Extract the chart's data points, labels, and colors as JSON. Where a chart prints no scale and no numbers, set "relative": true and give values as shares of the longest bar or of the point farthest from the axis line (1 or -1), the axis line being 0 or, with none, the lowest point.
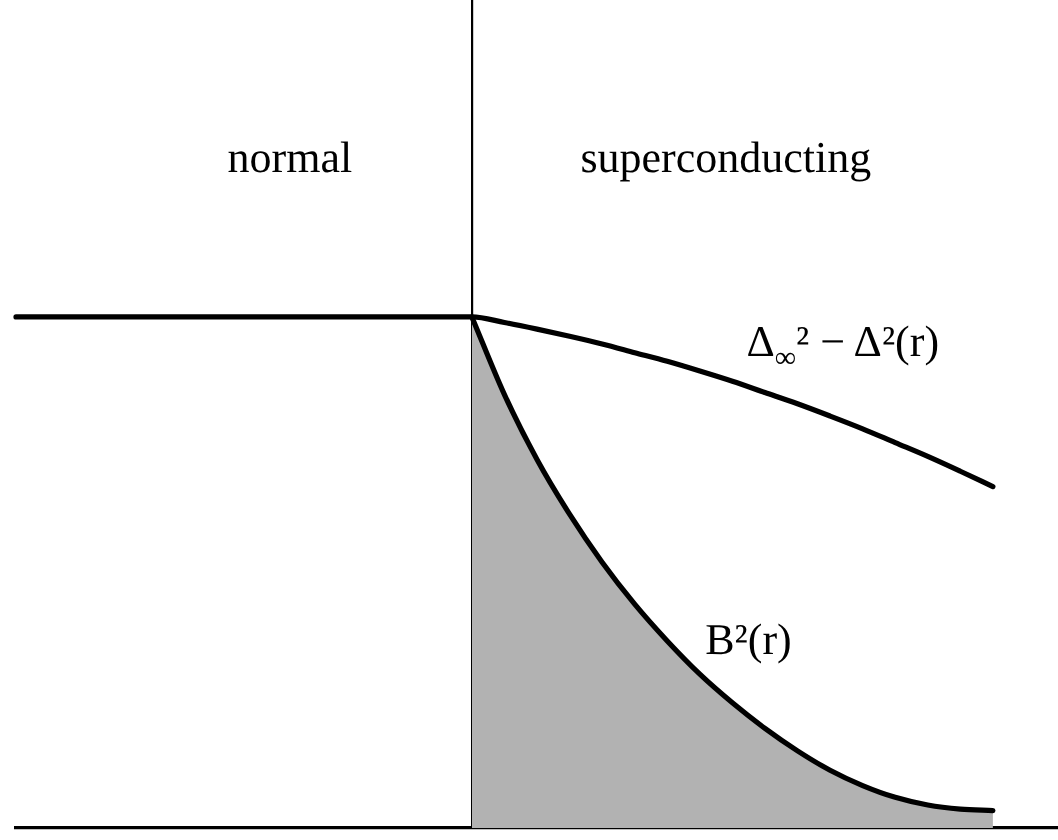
{
  "chart_data": {
    "type": "line",
    "relative": true,
    "categories": [
      null,
      null,
      null,
      null,
      null,
      null,
      null,
      null,
      null,
      null,
      null,
      null,
      null,
      null,
      null,
      null,
      null,
      null,
      null,
      null,
      null,
      null,
      null,
      null,
      null,
      null,
      null,
      null,
      null,
      null,
      null,
      null,
      null
    ],
    "series": [
      {
        "name": "Δ$_{∞}$² − Δ²(r)",
        "color": "#000000",
        "values": [
          1,
          1,
          1,
          1,
          1,
          1,
          1,
          1,
          1,
          1,
          1,
          1,
          1,
          1,
          1,
          0.989,
          0.976,
          0.962,
          0.947,
          0.93,
          0.913,
          0.894,
          0.874,
          0.852,
          0.83,
          0.806,
          0.781,
          0.754,
          0.727,
          0.698,
          0.668,
          null,
          null
        ]
      },
      {
        "name": "B²(r)",
        "type": "area",
        "color": "#b2b2b2",
        "values": [
          null,
          null,
          null,
          null,
          null,
          null,
          null,
          null,
          null,
          null,
          null,
          null,
          null,
          null,
          1,
          0.848,
          0.721,
          0.614,
          0.52,
          0.438,
          0.366,
          0.301,
          0.245,
          0.195,
          0.151,
          0.113,
          0.083,
          0.06,
          0.045,
          0.037,
          0.034,
          null,
          null
        ]
      }
    ],
    "annotations": [
      "normal",
      "superconducting"
    ]
  }
}
